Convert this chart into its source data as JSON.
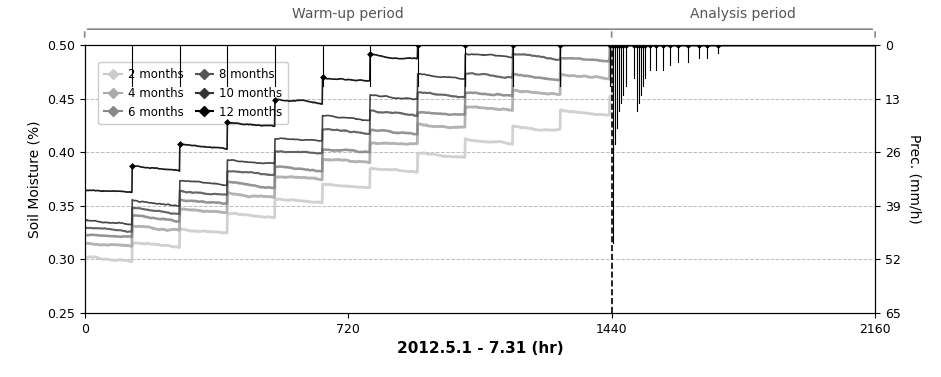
{
  "xlabel": "2012.5.1 - 7.31 (hr)",
  "ylabel_left": "Soil Moisture (%)",
  "ylabel_right": "Prec. (mm/h)",
  "xlim": [
    0,
    2160
  ],
  "ylim_left": [
    0.25,
    0.5
  ],
  "ylim_right": [
    0,
    65
  ],
  "xticks": [
    0,
    720,
    1440,
    2160
  ],
  "yticks_left": [
    0.25,
    0.3,
    0.35,
    0.4,
    0.45,
    0.5
  ],
  "yticks_right": [
    0,
    13,
    26,
    39,
    52,
    65
  ],
  "warmup_end": 1440,
  "warmup_label": "Warm-up period",
  "analysis_label": "Analysis period",
  "legend_entries": [
    "2 months",
    "4 months",
    "6 months",
    "8 months",
    "10 months",
    "12 months"
  ],
  "line_colors": [
    "#cccccc",
    "#aaaaaa",
    "#888888",
    "#555555",
    "#333333",
    "#000000"
  ],
  "line_widths": [
    2.0,
    2.0,
    1.8,
    1.5,
    1.2,
    1.2
  ],
  "background_color": "#ffffff",
  "grid_color": "#aaaaaa",
  "period_bar_color": "#888888",
  "n_total": 2161,
  "warmup_rain_times": [
    130,
    260,
    390,
    520,
    650,
    780,
    910,
    1040,
    1170,
    1300,
    1435
  ],
  "warmup_rain_amounts": [
    0.025,
    0.025,
    0.025,
    0.025,
    0.025,
    0.025,
    0.025,
    0.025,
    0.025,
    0.025,
    0.025
  ],
  "analysis_rain_times": [
    1443,
    1445,
    1450,
    1455,
    1460,
    1465,
    1470,
    1480,
    1500,
    1510,
    1515,
    1520,
    1525,
    1530,
    1545,
    1560,
    1580,
    1600,
    1620,
    1650,
    1680,
    1700,
    1730
  ],
  "analysis_rain_amounts": [
    0.12,
    0.08,
    0.06,
    0.05,
    0.04,
    0.035,
    0.03,
    0.025,
    0.02,
    0.04,
    0.035,
    0.03,
    0.025,
    0.02,
    0.015,
    0.015,
    0.015,
    0.012,
    0.01,
    0.01,
    0.008,
    0.008,
    0.005
  ],
  "starts": [
    0.302,
    0.315,
    0.322,
    0.33,
    0.337,
    0.365
  ],
  "dry_rate": 2.8e-05,
  "analysis_dry_rate": 0.00015
}
